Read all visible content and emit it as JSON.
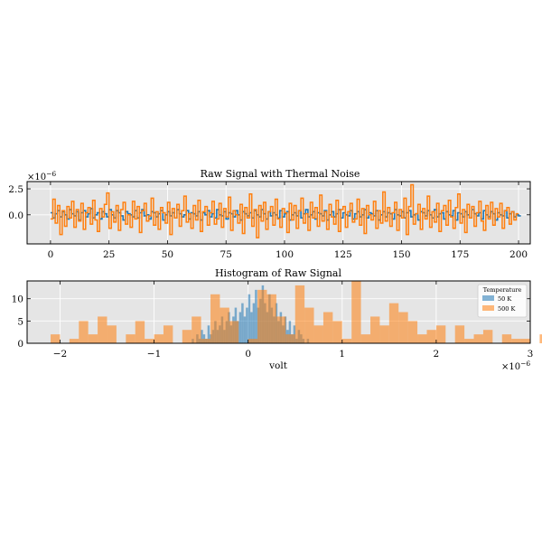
{
  "chart_data": [
    {
      "type": "line",
      "title": "Raw Signal with Thermal Noise",
      "xlabel": "",
      "ylabel": "",
      "offset_label": "×10",
      "offset_exp": "−6",
      "xlim": [
        -10,
        205
      ],
      "ylim": [
        -2.8,
        3.2
      ],
      "xticks": [
        0,
        25,
        50,
        75,
        100,
        125,
        150,
        175,
        200
      ],
      "yticks": [
        -0.0,
        2.5
      ],
      "ytick_labels": [
        "0.0",
        "2.5"
      ],
      "grid": true,
      "series": [
        {
          "color": "#1f77b4",
          "values": [
            0.2,
            -0.3,
            0.1,
            0.4,
            -0.2,
            0.3,
            0.0,
            -0.4,
            0.5,
            0.1,
            -0.1,
            0.3,
            -0.5,
            0.2,
            0.4,
            -0.2,
            0.1,
            0.6,
            -0.3,
            0.0,
            0.2,
            -0.4,
            0.3,
            0.1,
            -0.2,
            0.5,
            0.0,
            -0.3,
            0.4,
            0.2,
            -0.1,
            -0.5,
            0.3,
            0.1,
            0.0,
            -0.2,
            0.4,
            -0.3,
            0.2,
            0.5,
            -0.1,
            0.0,
            -0.4,
            0.3,
            0.2,
            -0.2,
            0.1,
            0.4,
            -0.5,
            0.0,
            0.3,
            -0.1,
            0.2,
            -0.3,
            0.5,
            0.1,
            -0.2,
            0.0,
            0.4,
            -0.4,
            0.2,
            0.1,
            -0.1,
            0.3,
            -0.5,
            0.2,
            0.0,
            0.4,
            -0.2,
            0.1,
            -0.3,
            0.5,
            0.0,
            -0.1,
            0.3,
            -0.4,
            0.2,
            0.1,
            -0.2,
            0.4,
            0.0,
            -0.5,
            0.3,
            0.1,
            -0.1,
            0.2,
            -0.3,
            0.4,
            0.0,
            -0.2,
            0.5,
            0.1,
            -0.4,
            0.3,
            -0.1,
            0.2,
            0.0,
            -0.3,
            0.4,
            -0.2,
            0.1,
            0.3,
            -0.5,
            0.0,
            0.2,
            -0.1,
            0.4,
            -0.3,
            0.1,
            0.5,
            -0.2,
            0.0,
            0.3,
            -0.4,
            0.2,
            0.1,
            -0.1,
            0.4,
            -0.5,
            0.0,
            0.3,
            -0.2,
            0.1,
            0.5,
            -0.3,
            0.2,
            0.0,
            -0.1,
            0.4,
            -0.4,
            0.1,
            0.3,
            -0.2,
            0.0,
            0.5,
            -0.3,
            0.2,
            0.1,
            -0.1,
            0.4,
            -0.5,
            0.0,
            0.3,
            -0.2,
            0.2,
            0.1,
            -0.4,
            0.5,
            0.0,
            -0.1,
            0.3,
            -0.3,
            0.2,
            0.4,
            -0.2,
            0.0,
            0.1,
            -0.5,
            0.3,
            0.2,
            -0.1,
            0.4,
            0.0,
            -0.3,
            0.5,
            -0.2,
            0.1,
            0.2,
            -0.4,
            0.3,
            0.0,
            -0.1,
            0.4,
            -0.5,
            0.2,
            0.1,
            -0.2,
            0.3,
            0.0,
            -0.3,
            0.5,
            0.1,
            -0.1,
            0.2,
            -0.4,
            0.4,
            0.0,
            -0.2,
            0.3,
            0.1,
            -0.5,
            0.2,
            0.0,
            -0.1,
            0.4,
            -0.3,
            0.1,
            0.3,
            -0.2,
            0.0,
            -0.1
          ]
        },
        {
          "color": "#ff7f0e",
          "values": [
            -0.4,
            1.5,
            -0.8,
            0.9,
            -1.9,
            0.4,
            -1.1,
            0.8,
            -0.3,
            1.3,
            -1.2,
            0.5,
            -0.6,
            1.1,
            -1.4,
            0.2,
            0.7,
            -0.9,
            1.4,
            -0.5,
            -1.6,
            0.6,
            -0.2,
            1.0,
            2.1,
            -1.3,
            0.3,
            -0.7,
            0.9,
            -1.5,
            0.5,
            1.2,
            -0.9,
            0.0,
            -1.2,
            1.3,
            -0.4,
            0.8,
            -1.7,
            0.4,
            1.1,
            -0.6,
            -0.1,
            1.6,
            -1.0,
            0.3,
            -1.4,
            0.7,
            0.2,
            -0.8,
            1.2,
            -1.9,
            0.6,
            -0.3,
            1.0,
            -1.1,
            0.4,
            1.8,
            -0.7,
            0.1,
            -1.3,
            0.9,
            -0.5,
            1.4,
            -1.6,
            0.3,
            0.8,
            -1.0,
            0.2,
            1.3,
            -0.9,
            -0.4,
            1.1,
            -1.2,
            0.6,
            -0.2,
            1.7,
            -1.5,
            0.4,
            0.0,
            -0.8,
            1.0,
            -1.8,
            0.7,
            -0.3,
            2.0,
            -1.1,
            0.5,
            -2.2,
            0.9,
            -0.6,
            1.2,
            -1.4,
            0.3,
            0.8,
            -1.0,
            1.5,
            -0.4,
            -1.2,
            0.6,
            0.2,
            -1.7,
            1.1,
            -0.5,
            0.9,
            -1.3,
            0.4,
            1.6,
            -0.8,
            0.1,
            -1.5,
            1.2,
            -0.3,
            0.7,
            -1.1,
            1.9,
            -0.6,
            0.3,
            -1.4,
            1.0,
            -0.2,
            -0.9,
            1.4,
            -1.6,
            0.5,
            0.8,
            -1.2,
            0.3,
            1.1,
            -0.7,
            -0.4,
            1.5,
            -1.0,
            0.6,
            -1.8,
            0.9,
            0.0,
            -0.5,
            1.3,
            -1.3,
            0.4,
            -0.8,
            2.2,
            -0.6,
            0.7,
            -1.1,
            0.2,
            1.2,
            -1.5,
            0.5,
            -0.3,
            1.6,
            -1.9,
            0.8,
            2.9,
            -0.9,
            0.1,
            1.0,
            -1.4,
            0.6,
            -0.4,
            1.8,
            -1.2,
            0.3,
            -0.7,
            1.1,
            -1.6,
            0.4,
            0.9,
            -1.0,
            1.4,
            -0.2,
            -1.3,
            0.7,
            2.0,
            -0.8,
            0.5,
            -1.7,
            1.0,
            -0.3,
            0.8,
            -1.1,
            0.2,
            1.3,
            -0.6,
            -1.5,
            0.9,
            -0.4,
            1.2,
            -1.0,
            0.6,
            -0.2,
            1.1,
            -1.3,
            0.4,
            0.7,
            -0.9,
            0.3,
            -0.5,
            0.1
          ]
        }
      ]
    },
    {
      "type": "bar",
      "title": "Histogram of Raw Signal",
      "xlabel": "volt",
      "ylabel": "",
      "offset_label": "×10",
      "offset_exp": "−6",
      "xlim": [
        -2.35,
        3.0
      ],
      "ylim": [
        0,
        14
      ],
      "xticks": [
        -2,
        -1,
        0,
        1,
        2,
        3
      ],
      "xtick_labels": [
        "−2",
        "−1",
        "0",
        "1",
        "2",
        "3"
      ],
      "yticks": [
        0,
        5,
        10
      ],
      "grid": true,
      "legend": {
        "title": "Temperature",
        "position": "upper right"
      },
      "series": [
        {
          "name": "50 K",
          "color": "#1f77b4",
          "opacity": 0.55,
          "bin_start": -0.6,
          "bin_width": 0.024,
          "counts": [
            1,
            0,
            2,
            1,
            3,
            2,
            1,
            4,
            2,
            3,
            5,
            3,
            4,
            6,
            3,
            5,
            7,
            4,
            6,
            8,
            5,
            7,
            9,
            6,
            8,
            11,
            7,
            9,
            12,
            8,
            10,
            13,
            9,
            7,
            11,
            8,
            6,
            9,
            5,
            7,
            4,
            6,
            3,
            5,
            2,
            4,
            1,
            3,
            2,
            1,
            0,
            1
          ]
        },
        {
          "name": "500 K",
          "color": "#ff7f0e",
          "opacity": 0.55,
          "bin_start": -2.1,
          "bin_width": 0.1,
          "counts": [
            2,
            0,
            1,
            5,
            2,
            6,
            4,
            0,
            2,
            5,
            1,
            2,
            4,
            0,
            3,
            6,
            1,
            11,
            8,
            5,
            0,
            1,
            12,
            11,
            6,
            2,
            13,
            8,
            4,
            7,
            5,
            1,
            14,
            2,
            6,
            4,
            9,
            7,
            5,
            2,
            3,
            4,
            0,
            4,
            1,
            2,
            3,
            0,
            2,
            1,
            1,
            0,
            2,
            0,
            1,
            0,
            0,
            0,
            2
          ]
        }
      ]
    }
  ]
}
